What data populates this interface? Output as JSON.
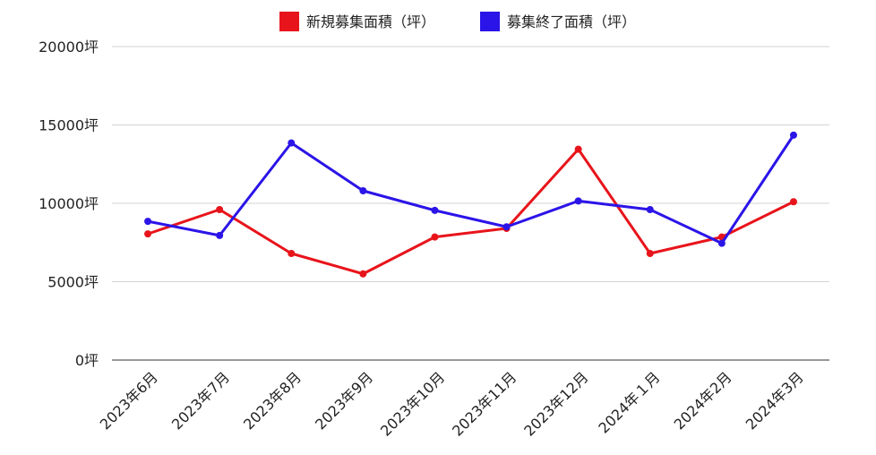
{
  "chart_data": {
    "type": "line",
    "categories": [
      "2023年6月",
      "2023年7月",
      "2023年8月",
      "2023年9月",
      "2023年10月",
      "2023年11月",
      "2023年12月",
      "2024年１月",
      "2024年2月",
      "2024年3月"
    ],
    "series": [
      {
        "name": "新規募集面積（坪）",
        "color": "#e8141b",
        "values": [
          8050,
          9600,
          6800,
          5500,
          7850,
          8400,
          13450,
          6800,
          7850,
          10100
        ]
      },
      {
        "name": "募集終了面積（坪）",
        "color": "#2b14e8",
        "values": [
          8850,
          7950,
          13850,
          10800,
          9550,
          8500,
          10150,
          9600,
          7450,
          14350
        ]
      }
    ],
    "y_ticks": [
      "0坪",
      "5000坪",
      "10000坪",
      "15000坪",
      "20000坪"
    ],
    "ylim": [
      0,
      20000
    ],
    "grid": true,
    "legend_position": "top"
  }
}
